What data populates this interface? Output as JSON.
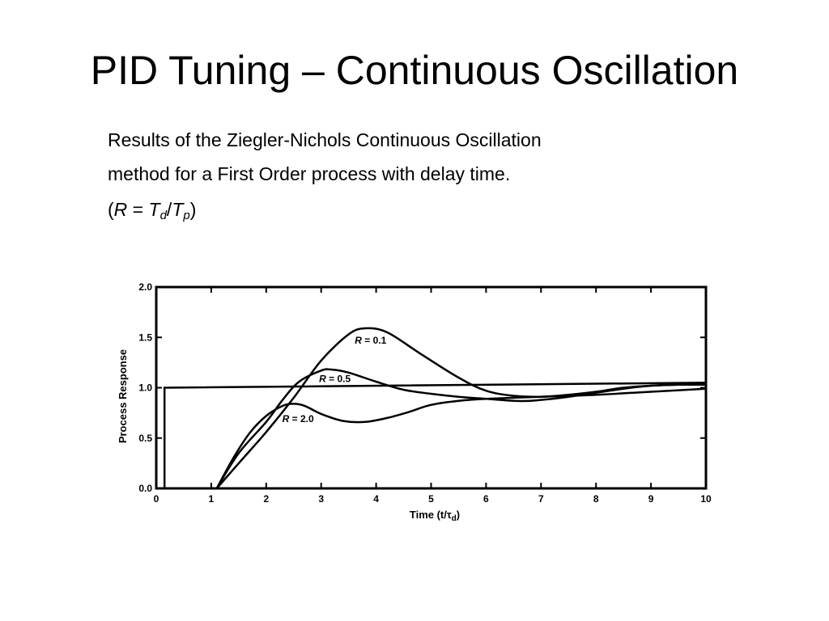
{
  "slide": {
    "title": "PID Tuning – Continuous Oscillation",
    "body_line_1": "Results of the Ziegler-Nichols Continuous Oscillation",
    "body_line_2": "method for a First Order process with delay time.",
    "formula": {
      "open": "(",
      "r": "R",
      "eq": " = ",
      "t1": "T",
      "t1_sub": "d",
      "slash": "/",
      "t2": "T",
      "t2_sub": "p",
      "close": ")"
    }
  },
  "chart_data": {
    "type": "line",
    "xlim": [
      0,
      10
    ],
    "ylim": [
      0,
      2.0
    ],
    "x_ticks": [
      "0",
      "1",
      "2",
      "3",
      "4",
      "5",
      "6",
      "7",
      "8",
      "9",
      "10"
    ],
    "y_ticks": [
      "0.0",
      "0.5",
      "1.0",
      "1.5",
      "2.0"
    ],
    "xlabel": "Time (t/τ",
    "xlabel_sub": "d",
    "xlabel_close": ")",
    "ylabel": "Process Response",
    "grid": false,
    "color": "#000000",
    "setpoint": {
      "x": [
        0,
        0.15,
        0.15,
        10
      ],
      "y": [
        0,
        0,
        1.0,
        1.05
      ]
    },
    "series": [
      {
        "label": "R = 0.1",
        "label_var": "R",
        "label_rest": " = 0.1",
        "label_at": [
          3.9,
          1.47
        ],
        "x": [
          1.1,
          1.5,
          2.0,
          2.5,
          3.0,
          3.5,
          3.8,
          4.2,
          4.8,
          5.5,
          6.0,
          6.5,
          7.0,
          7.5,
          8.0,
          8.5,
          9.0,
          9.5,
          10.0
        ],
        "y": [
          0.0,
          0.25,
          0.56,
          0.9,
          1.27,
          1.53,
          1.59,
          1.55,
          1.34,
          1.1,
          0.97,
          0.92,
          0.91,
          0.93,
          0.96,
          1.0,
          1.02,
          1.03,
          1.03
        ]
      },
      {
        "label": "R = 0.5",
        "label_var": "R",
        "label_rest": " = 0.5",
        "label_at": [
          3.25,
          1.09
        ],
        "x": [
          1.1,
          1.5,
          2.0,
          2.3,
          2.6,
          3.0,
          3.2,
          3.5,
          4.0,
          4.5,
          5.0,
          5.5,
          6.0,
          6.5,
          6.8,
          7.2,
          7.5,
          8.0,
          8.5,
          9.0,
          9.5,
          10.0
        ],
        "y": [
          0.0,
          0.35,
          0.66,
          0.88,
          1.06,
          1.17,
          1.18,
          1.15,
          1.06,
          0.98,
          0.94,
          0.91,
          0.89,
          0.87,
          0.87,
          0.89,
          0.91,
          0.95,
          0.99,
          1.02,
          1.03,
          1.03
        ]
      },
      {
        "label": "R = 2.0",
        "label_var": "R",
        "label_rest": " = 2.0",
        "label_at": [
          2.58,
          0.69
        ],
        "x": [
          1.1,
          1.4,
          1.7,
          2.0,
          2.3,
          2.5,
          2.7,
          3.0,
          3.4,
          3.8,
          4.2,
          4.6,
          5.0,
          5.5,
          6.0,
          7.0,
          8.0,
          9.0,
          10.0
        ],
        "y": [
          0.0,
          0.3,
          0.55,
          0.72,
          0.82,
          0.84,
          0.82,
          0.74,
          0.67,
          0.66,
          0.7,
          0.76,
          0.83,
          0.87,
          0.89,
          0.91,
          0.93,
          0.96,
          0.99
        ]
      }
    ]
  }
}
